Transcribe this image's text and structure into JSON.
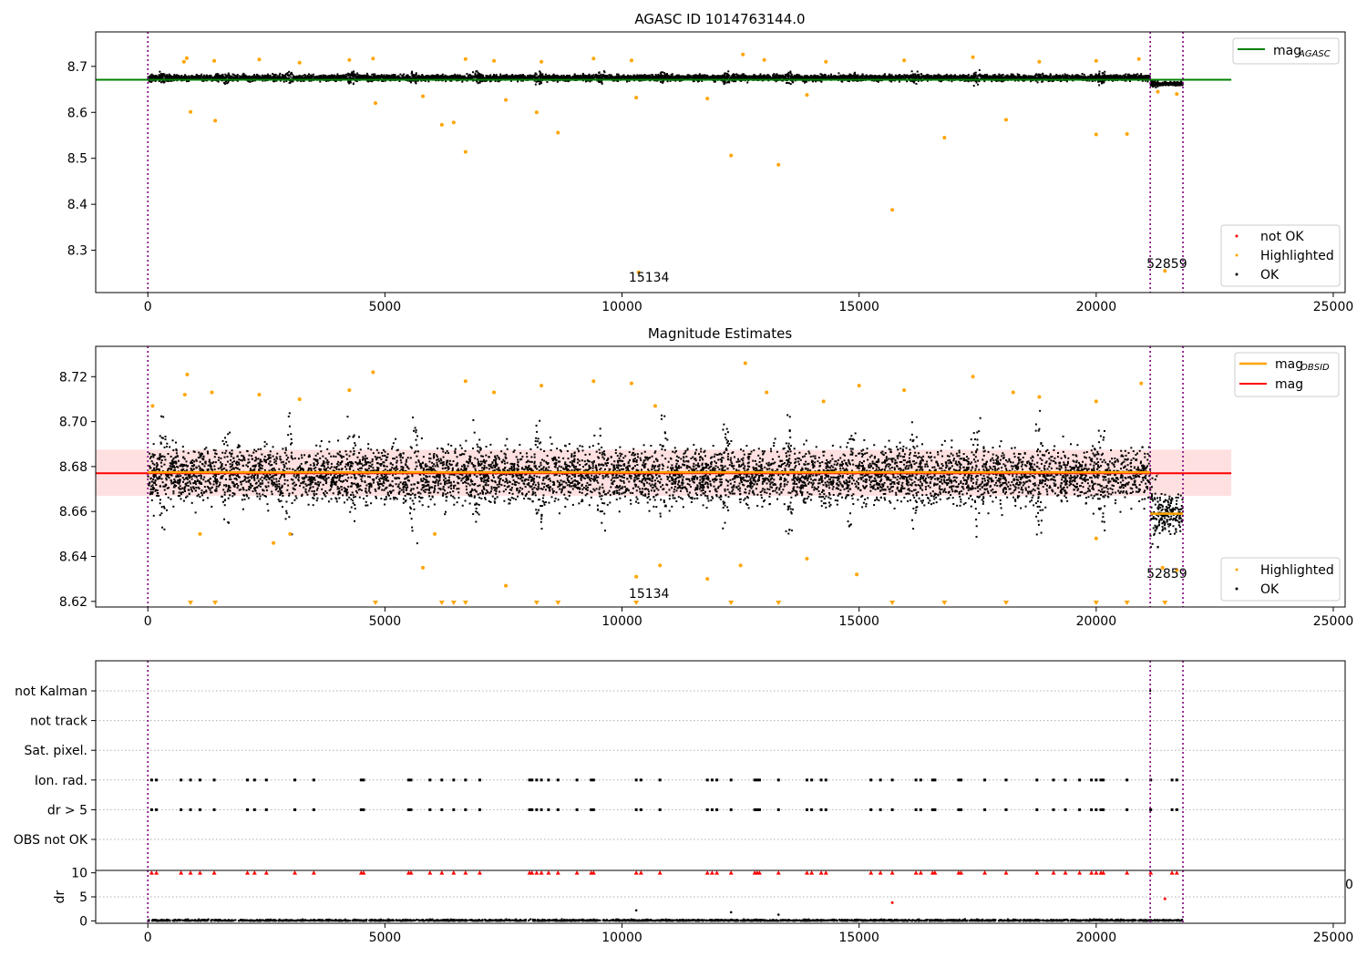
{
  "chart_data": [
    {
      "type": "scatter",
      "title": "AGASC ID 1014763144.0",
      "xlim": [
        -1100,
        25250
      ],
      "ylim": [
        8.208,
        8.775
      ],
      "x_ticks": [
        0,
        5000,
        10000,
        15000,
        20000,
        25000
      ],
      "y_ticks": [
        8.3,
        8.4,
        8.5,
        8.6,
        8.7
      ],
      "y_tick_format": 1,
      "vlines": [
        0,
        21140,
        21830
      ],
      "obsid_labels": [
        {
          "x": 10570,
          "y": 8.232,
          "text": "15134"
        },
        {
          "x": 21490,
          "y": 8.262,
          "text": "52859"
        }
      ],
      "hlines": [
        {
          "name": "mag_AGASC",
          "color": "#008000",
          "y": 8.671,
          "x0": -1100,
          "x1": 22850
        }
      ],
      "ok_cloud": [
        {
          "x0": 0,
          "x1": 21140,
          "y_center": 8.675,
          "y_spread": 0.014
        },
        {
          "x0": 21140,
          "x1": 21830,
          "y_center": 8.662,
          "y_spread": 0.008
        }
      ],
      "highlighted_top": [
        {
          "x": 760,
          "y": 8.71
        },
        {
          "x": 820,
          "y": 8.718
        },
        {
          "x": 1400,
          "y": 8.712
        },
        {
          "x": 2350,
          "y": 8.715
        },
        {
          "x": 3200,
          "y": 8.708
        },
        {
          "x": 4250,
          "y": 8.714
        },
        {
          "x": 4750,
          "y": 8.717
        },
        {
          "x": 6700,
          "y": 8.716
        },
        {
          "x": 7300,
          "y": 8.712
        },
        {
          "x": 8300,
          "y": 8.71
        },
        {
          "x": 9400,
          "y": 8.717
        },
        {
          "x": 10200,
          "y": 8.713
        },
        {
          "x": 12550,
          "y": 8.726
        },
        {
          "x": 13000,
          "y": 8.714
        },
        {
          "x": 14300,
          "y": 8.71
        },
        {
          "x": 15950,
          "y": 8.713
        },
        {
          "x": 17400,
          "y": 8.72
        },
        {
          "x": 18800,
          "y": 8.71
        },
        {
          "x": 20000,
          "y": 8.712
        },
        {
          "x": 20900,
          "y": 8.716
        }
      ],
      "highlighted_low": [
        {
          "x": 900,
          "y": 8.601
        },
        {
          "x": 1420,
          "y": 8.582
        },
        {
          "x": 4800,
          "y": 8.62
        },
        {
          "x": 5800,
          "y": 8.635
        },
        {
          "x": 6200,
          "y": 8.573
        },
        {
          "x": 6450,
          "y": 8.578
        },
        {
          "x": 6700,
          "y": 8.514
        },
        {
          "x": 7550,
          "y": 8.627
        },
        {
          "x": 8200,
          "y": 8.6
        },
        {
          "x": 8650,
          "y": 8.556
        },
        {
          "x": 10350,
          "y": 8.252
        },
        {
          "x": 10300,
          "y": 8.632
        },
        {
          "x": 11800,
          "y": 8.63
        },
        {
          "x": 12300,
          "y": 8.506
        },
        {
          "x": 13300,
          "y": 8.486
        },
        {
          "x": 13900,
          "y": 8.638
        },
        {
          "x": 15700,
          "y": 8.388
        },
        {
          "x": 16800,
          "y": 8.545
        },
        {
          "x": 18100,
          "y": 8.584
        },
        {
          "x": 20000,
          "y": 8.552
        },
        {
          "x": 20650,
          "y": 8.553
        },
        {
          "x": 21450,
          "y": 8.255
        },
        {
          "x": 21300,
          "y": 8.645
        },
        {
          "x": 21700,
          "y": 8.64
        }
      ],
      "legend_top": [
        {
          "label": "mag",
          "sub": "AGASC",
          "color": "#008000"
        }
      ],
      "legend_bottom": [
        {
          "label": "not OK",
          "color": "#ff0000"
        },
        {
          "label": "Highlighted",
          "color": "#ffa500"
        },
        {
          "label": "OK",
          "color": "#000000"
        }
      ]
    },
    {
      "type": "scatter",
      "title": "Magnitude Estimates",
      "xlim": [
        -1100,
        25250
      ],
      "ylim": [
        8.6175,
        8.7335
      ],
      "x_ticks": [
        0,
        5000,
        10000,
        15000,
        20000,
        25000
      ],
      "y_ticks": [
        8.62,
        8.64,
        8.66,
        8.68,
        8.7,
        8.72
      ],
      "y_tick_format": 2,
      "vlines": [
        0,
        21140,
        21830
      ],
      "obsid_labels": [
        {
          "x": 10570,
          "y": 8.6215,
          "text": "15134"
        },
        {
          "x": 21490,
          "y": 8.6305,
          "text": "52859"
        }
      ],
      "band": {
        "y0": 8.667,
        "y1": 8.6875,
        "x0": -1100,
        "x1": 22850
      },
      "hlines": [
        {
          "name": "mag",
          "color": "#ff0000",
          "y": 8.677,
          "x0": -1100,
          "x1": 22850
        },
        {
          "name": "mag_OBSID",
          "color": "#ffa500",
          "y": 8.6775,
          "x0": 0,
          "x1": 21140
        },
        {
          "name": "mag_OBSID",
          "color": "#ffa500",
          "y": 8.659,
          "x0": 21140,
          "x1": 21830
        }
      ],
      "ok_cloud": [
        {
          "x0": 0,
          "x1": 21140,
          "y_center": 8.676,
          "y_spread": 0.026
        },
        {
          "x0": 21140,
          "x1": 21830,
          "y_center": 8.659,
          "y_spread": 0.018
        }
      ],
      "highlighted_top": [
        {
          "x": 100,
          "y": 8.707
        },
        {
          "x": 780,
          "y": 8.712
        },
        {
          "x": 830,
          "y": 8.721
        },
        {
          "x": 1350,
          "y": 8.713
        },
        {
          "x": 2350,
          "y": 8.712
        },
        {
          "x": 3200,
          "y": 8.71
        },
        {
          "x": 4250,
          "y": 8.714
        },
        {
          "x": 4750,
          "y": 8.722
        },
        {
          "x": 6700,
          "y": 8.718
        },
        {
          "x": 7300,
          "y": 8.713
        },
        {
          "x": 8300,
          "y": 8.716
        },
        {
          "x": 9400,
          "y": 8.718
        },
        {
          "x": 10200,
          "y": 8.717
        },
        {
          "x": 10700,
          "y": 8.707
        },
        {
          "x": 12600,
          "y": 8.726
        },
        {
          "x": 13050,
          "y": 8.713
        },
        {
          "x": 14250,
          "y": 8.709
        },
        {
          "x": 15000,
          "y": 8.716
        },
        {
          "x": 15950,
          "y": 8.714
        },
        {
          "x": 17400,
          "y": 8.72
        },
        {
          "x": 18250,
          "y": 8.713
        },
        {
          "x": 18800,
          "y": 8.711
        },
        {
          "x": 20000,
          "y": 8.709
        },
        {
          "x": 20950,
          "y": 8.717
        }
      ],
      "highlighted_low": [
        {
          "x": 1100,
          "y": 8.65
        },
        {
          "x": 2650,
          "y": 8.646
        },
        {
          "x": 3000,
          "y": 8.65
        },
        {
          "x": 5800,
          "y": 8.635
        },
        {
          "x": 6050,
          "y": 8.65
        },
        {
          "x": 7550,
          "y": 8.627
        },
        {
          "x": 10300,
          "y": 8.631
        },
        {
          "x": 10800,
          "y": 8.636
        },
        {
          "x": 11800,
          "y": 8.63
        },
        {
          "x": 12500,
          "y": 8.636
        },
        {
          "x": 13900,
          "y": 8.639
        },
        {
          "x": 14950,
          "y": 8.632
        },
        {
          "x": 20000,
          "y": 8.648
        },
        {
          "x": 21400,
          "y": 8.635
        },
        {
          "x": 21700,
          "y": 8.634
        }
      ],
      "clipped_markers_x": [
        900,
        1420,
        4800,
        6200,
        6450,
        6700,
        8200,
        8650,
        10300,
        12300,
        13300,
        15700,
        16800,
        18100,
        20000,
        20650,
        21450
      ],
      "legend_top": [
        {
          "label": "mag",
          "sub": "OBSID",
          "color": "#ffa500"
        },
        {
          "label": "mag",
          "sub": "",
          "color": "#ff0000"
        }
      ],
      "legend_bottom": [
        {
          "label": "Highlighted",
          "color": "#ffa500"
        },
        {
          "label": "OK",
          "color": "#000000"
        }
      ]
    },
    {
      "type": "scatter",
      "xlim": [
        -1100,
        25250
      ],
      "x_ticks": [
        0,
        5000,
        10000,
        15000,
        20000,
        25000
      ],
      "vlines": [
        0,
        21140,
        21830
      ],
      "categories": [
        "not Kalman",
        "not track",
        "Sat. pixel.",
        "Ion. rad.",
        "dr > 5",
        "OBS not OK"
      ],
      "flag_x": [
        80,
        180,
        700,
        900,
        1100,
        1400,
        2100,
        2250,
        2500,
        3100,
        3500,
        4500,
        4550,
        5500,
        5550,
        5950,
        6200,
        6450,
        6700,
        7000,
        8050,
        8100,
        8200,
        8300,
        8450,
        8650,
        9050,
        9350,
        9400,
        10300,
        10400,
        10800,
        11800,
        11900,
        12000,
        12300,
        12800,
        12850,
        12900,
        13300,
        13900,
        14000,
        14200,
        14300,
        15250,
        15450,
        15700,
        16200,
        16300,
        16550,
        16600,
        17100,
        17150,
        17650,
        18100,
        18750,
        19100,
        19350,
        19650,
        19900,
        20000,
        20100,
        20150,
        20650,
        21150,
        21600,
        21700
      ],
      "not_kalman_x": [
        21140
      ],
      "dr_ylabel": "dr",
      "dr_ylim": [
        -0.5,
        10.5
      ],
      "dr_y_ticks": [
        0,
        5,
        10
      ],
      "dr_outliers": [
        {
          "x": 10300,
          "y": 2.2
        },
        {
          "x": 12300,
          "y": 1.8
        },
        {
          "x": 13300,
          "y": 1.3
        }
      ],
      "dr_red_outliers": [
        {
          "x": 15700,
          "y": 3.8
        },
        {
          "x": 21450,
          "y": 4.6
        }
      ],
      "stray_tick_label": "0"
    }
  ]
}
